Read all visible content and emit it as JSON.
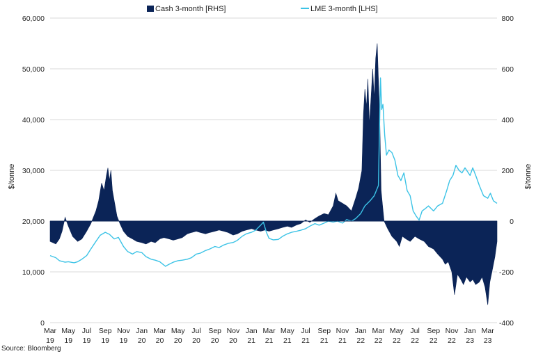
{
  "chart_data": {
    "type": "area+line",
    "title": "",
    "ylabel_left": "$/tonne",
    "ylabel_right": "$/tonne",
    "ylim_left": [
      0,
      60000
    ],
    "ylim_right": [
      -400,
      800
    ],
    "yticks_left": [
      "0",
      "10,000",
      "20,000",
      "30,000",
      "40,000",
      "50,000",
      "60,000"
    ],
    "yticks_left_values": [
      0,
      10000,
      20000,
      30000,
      40000,
      50000,
      60000
    ],
    "yticks_right": [
      "-400",
      "-200",
      "0",
      "200",
      "400",
      "600",
      "800"
    ],
    "yticks_right_values": [
      -400,
      -200,
      0,
      200,
      400,
      600,
      800
    ],
    "x_domain": [
      "2019-03",
      "2023-04"
    ],
    "xticks": [
      {
        "month": "Mar",
        "year": "19",
        "date": "2019-03"
      },
      {
        "month": "May",
        "year": "19",
        "date": "2019-05"
      },
      {
        "month": "Jul",
        "year": "19",
        "date": "2019-07"
      },
      {
        "month": "Sep",
        "year": "19",
        "date": "2019-09"
      },
      {
        "month": "Nov",
        "year": "19",
        "date": "2019-11"
      },
      {
        "month": "Jan",
        "year": "20",
        "date": "2020-01"
      },
      {
        "month": "Mar",
        "year": "20",
        "date": "2020-03"
      },
      {
        "month": "May",
        "year": "20",
        "date": "2020-05"
      },
      {
        "month": "Jul",
        "year": "20",
        "date": "2020-07"
      },
      {
        "month": "Sep",
        "year": "20",
        "date": "2020-09"
      },
      {
        "month": "Nov",
        "year": "20",
        "date": "2020-11"
      },
      {
        "month": "Jan",
        "year": "21",
        "date": "2021-01"
      },
      {
        "month": "Mar",
        "year": "21",
        "date": "2021-03"
      },
      {
        "month": "May",
        "year": "21",
        "date": "2021-05"
      },
      {
        "month": "Jul",
        "year": "21",
        "date": "2021-07"
      },
      {
        "month": "Sep",
        "year": "21",
        "date": "2021-09"
      },
      {
        "month": "Nov",
        "year": "21",
        "date": "2021-11"
      },
      {
        "month": "Jan",
        "year": "22",
        "date": "2022-01"
      },
      {
        "month": "Mar",
        "year": "22",
        "date": "2022-03"
      },
      {
        "month": "May",
        "year": "22",
        "date": "2022-05"
      },
      {
        "month": "Jul",
        "year": "22",
        "date": "2022-07"
      },
      {
        "month": "Sep",
        "year": "22",
        "date": "2022-09"
      },
      {
        "month": "Nov",
        "year": "22",
        "date": "2022-11"
      },
      {
        "month": "Jan",
        "year": "23",
        "date": "2023-01"
      },
      {
        "month": "Mar",
        "year": "23",
        "date": "2023-03"
      }
    ],
    "grid": true,
    "legend_position": "top-center",
    "series": [
      {
        "name": "Cash 3-month [RHS]",
        "type": "area",
        "axis": "right",
        "color": "#0b2457",
        "points": [
          [
            "2019-03-01",
            -80
          ],
          [
            "2019-03-20",
            -90
          ],
          [
            "2019-04-01",
            -70
          ],
          [
            "2019-04-10",
            -40
          ],
          [
            "2019-04-20",
            15
          ],
          [
            "2019-05-01",
            -20
          ],
          [
            "2019-05-15",
            -60
          ],
          [
            "2019-06-01",
            -80
          ],
          [
            "2019-06-15",
            -70
          ],
          [
            "2019-07-01",
            -40
          ],
          [
            "2019-07-15",
            -10
          ],
          [
            "2019-08-01",
            40
          ],
          [
            "2019-08-10",
            80
          ],
          [
            "2019-08-20",
            150
          ],
          [
            "2019-08-28",
            120
          ],
          [
            "2019-09-05",
            180
          ],
          [
            "2019-09-10",
            210
          ],
          [
            "2019-09-15",
            160
          ],
          [
            "2019-09-20",
            200
          ],
          [
            "2019-09-25",
            120
          ],
          [
            "2019-10-01",
            80
          ],
          [
            "2019-10-10",
            20
          ],
          [
            "2019-10-20",
            -10
          ],
          [
            "2019-11-01",
            -40
          ],
          [
            "2019-11-15",
            -60
          ],
          [
            "2019-12-01",
            -70
          ],
          [
            "2019-12-15",
            -80
          ],
          [
            "2020-01-01",
            -85
          ],
          [
            "2020-01-15",
            -90
          ],
          [
            "2020-02-01",
            -80
          ],
          [
            "2020-02-15",
            -85
          ],
          [
            "2020-03-01",
            -70
          ],
          [
            "2020-03-15",
            -65
          ],
          [
            "2020-04-01",
            -70
          ],
          [
            "2020-04-15",
            -75
          ],
          [
            "2020-05-01",
            -70
          ],
          [
            "2020-05-15",
            -65
          ],
          [
            "2020-06-01",
            -50
          ],
          [
            "2020-06-15",
            -45
          ],
          [
            "2020-07-01",
            -40
          ],
          [
            "2020-07-15",
            -45
          ],
          [
            "2020-08-01",
            -50
          ],
          [
            "2020-08-15",
            -45
          ],
          [
            "2020-09-01",
            -40
          ],
          [
            "2020-09-15",
            -35
          ],
          [
            "2020-10-01",
            -40
          ],
          [
            "2020-10-15",
            -45
          ],
          [
            "2020-11-01",
            -55
          ],
          [
            "2020-11-15",
            -50
          ],
          [
            "2020-12-01",
            -40
          ],
          [
            "2020-12-15",
            -35
          ],
          [
            "2021-01-01",
            -30
          ],
          [
            "2021-01-15",
            -35
          ],
          [
            "2021-02-01",
            -40
          ],
          [
            "2021-02-15",
            -35
          ],
          [
            "2021-03-01",
            -40
          ],
          [
            "2021-03-15",
            -35
          ],
          [
            "2021-04-01",
            -30
          ],
          [
            "2021-04-15",
            -25
          ],
          [
            "2021-05-01",
            -20
          ],
          [
            "2021-05-15",
            -25
          ],
          [
            "2021-06-01",
            -15
          ],
          [
            "2021-06-15",
            -10
          ],
          [
            "2021-07-01",
            5
          ],
          [
            "2021-07-15",
            -5
          ],
          [
            "2021-08-01",
            10
          ],
          [
            "2021-08-15",
            20
          ],
          [
            "2021-09-01",
            30
          ],
          [
            "2021-09-15",
            25
          ],
          [
            "2021-10-01",
            60
          ],
          [
            "2021-10-10",
            110
          ],
          [
            "2021-10-18",
            80
          ],
          [
            "2021-11-01",
            70
          ],
          [
            "2021-11-15",
            60
          ],
          [
            "2021-12-01",
            40
          ],
          [
            "2021-12-15",
            90
          ],
          [
            "2021-12-25",
            130
          ],
          [
            "2022-01-05",
            200
          ],
          [
            "2022-01-10",
            420
          ],
          [
            "2022-01-15",
            520
          ],
          [
            "2022-01-20",
            450
          ],
          [
            "2022-01-25",
            560
          ],
          [
            "2022-01-30",
            380
          ],
          [
            "2022-02-05",
            500
          ],
          [
            "2022-02-10",
            600
          ],
          [
            "2022-02-15",
            480
          ],
          [
            "2022-02-20",
            640
          ],
          [
            "2022-02-25",
            700
          ],
          [
            "2022-03-01",
            560
          ],
          [
            "2022-03-05",
            440
          ],
          [
            "2022-03-10",
            120
          ],
          [
            "2022-03-15",
            60
          ],
          [
            "2022-03-20",
            0
          ],
          [
            "2022-04-01",
            -30
          ],
          [
            "2022-04-15",
            -60
          ],
          [
            "2022-05-01",
            -80
          ],
          [
            "2022-05-10",
            -100
          ],
          [
            "2022-05-20",
            -60
          ],
          [
            "2022-06-01",
            -70
          ],
          [
            "2022-06-15",
            -80
          ],
          [
            "2022-07-01",
            -60
          ],
          [
            "2022-07-15",
            -70
          ],
          [
            "2022-08-01",
            -80
          ],
          [
            "2022-08-15",
            -100
          ],
          [
            "2022-09-01",
            -110
          ],
          [
            "2022-09-15",
            -130
          ],
          [
            "2022-10-01",
            -150
          ],
          [
            "2022-10-10",
            -170
          ],
          [
            "2022-10-20",
            -160
          ],
          [
            "2022-11-01",
            -200
          ],
          [
            "2022-11-10",
            -290
          ],
          [
            "2022-11-20",
            -210
          ],
          [
            "2022-12-01",
            -230
          ],
          [
            "2022-12-10",
            -250
          ],
          [
            "2022-12-20",
            -220
          ],
          [
            "2023-01-01",
            -240
          ],
          [
            "2023-01-10",
            -230
          ],
          [
            "2023-01-20",
            -250
          ],
          [
            "2023-02-01",
            -240
          ],
          [
            "2023-02-10",
            -220
          ],
          [
            "2023-02-20",
            -260
          ],
          [
            "2023-03-01",
            -330
          ],
          [
            "2023-03-08",
            -240
          ],
          [
            "2023-03-15",
            -200
          ],
          [
            "2023-03-25",
            -140
          ],
          [
            "2023-04-01",
            -80
          ]
        ]
      },
      {
        "name": "LME 3-month [LHS]",
        "type": "line",
        "axis": "left",
        "color": "#3cc3e6",
        "points": [
          [
            "2019-03-01",
            13200
          ],
          [
            "2019-03-20",
            12800
          ],
          [
            "2019-04-01",
            12200
          ],
          [
            "2019-04-20",
            11900
          ],
          [
            "2019-05-01",
            12000
          ],
          [
            "2019-05-20",
            11800
          ],
          [
            "2019-06-01",
            12000
          ],
          [
            "2019-06-15",
            12500
          ],
          [
            "2019-07-01",
            13200
          ],
          [
            "2019-07-15",
            14500
          ],
          [
            "2019-08-01",
            16000
          ],
          [
            "2019-08-15",
            17200
          ],
          [
            "2019-09-01",
            17800
          ],
          [
            "2019-09-15",
            17400
          ],
          [
            "2019-10-01",
            16500
          ],
          [
            "2019-10-15",
            16800
          ],
          [
            "2019-11-01",
            15000
          ],
          [
            "2019-11-15",
            14000
          ],
          [
            "2019-12-01",
            13500
          ],
          [
            "2019-12-15",
            14000
          ],
          [
            "2020-01-01",
            13800
          ],
          [
            "2020-01-15",
            13000
          ],
          [
            "2020-02-01",
            12500
          ],
          [
            "2020-02-15",
            12300
          ],
          [
            "2020-03-01",
            12000
          ],
          [
            "2020-03-20",
            11100
          ],
          [
            "2020-04-01",
            11500
          ],
          [
            "2020-04-15",
            11900
          ],
          [
            "2020-05-01",
            12200
          ],
          [
            "2020-05-15",
            12300
          ],
          [
            "2020-06-01",
            12500
          ],
          [
            "2020-06-15",
            12800
          ],
          [
            "2020-07-01",
            13500
          ],
          [
            "2020-07-15",
            13700
          ],
          [
            "2020-08-01",
            14200
          ],
          [
            "2020-08-15",
            14500
          ],
          [
            "2020-09-01",
            15000
          ],
          [
            "2020-09-15",
            14800
          ],
          [
            "2020-10-01",
            15300
          ],
          [
            "2020-10-15",
            15600
          ],
          [
            "2020-11-01",
            15800
          ],
          [
            "2020-11-15",
            16200
          ],
          [
            "2020-12-01",
            17000
          ],
          [
            "2020-12-15",
            17500
          ],
          [
            "2021-01-01",
            17800
          ],
          [
            "2021-01-15",
            18200
          ],
          [
            "2021-02-01",
            19200
          ],
          [
            "2021-02-10",
            19800
          ],
          [
            "2021-02-20",
            17800
          ],
          [
            "2021-03-01",
            16600
          ],
          [
            "2021-03-15",
            16300
          ],
          [
            "2021-04-01",
            16400
          ],
          [
            "2021-04-15",
            17000
          ],
          [
            "2021-05-01",
            17500
          ],
          [
            "2021-05-15",
            17800
          ],
          [
            "2021-06-01",
            18000
          ],
          [
            "2021-06-15",
            18200
          ],
          [
            "2021-07-01",
            18500
          ],
          [
            "2021-07-15",
            19000
          ],
          [
            "2021-08-01",
            19500
          ],
          [
            "2021-08-15",
            19200
          ],
          [
            "2021-09-01",
            19600
          ],
          [
            "2021-09-15",
            20000
          ],
          [
            "2021-10-01",
            19800
          ],
          [
            "2021-10-15",
            20000
          ],
          [
            "2021-11-01",
            19600
          ],
          [
            "2021-11-15",
            20300
          ],
          [
            "2021-12-01",
            20000
          ],
          [
            "2021-12-15",
            20500
          ],
          [
            "2022-01-01",
            21500
          ],
          [
            "2022-01-15",
            23000
          ],
          [
            "2022-02-01",
            24000
          ],
          [
            "2022-02-15",
            25000
          ],
          [
            "2022-03-01",
            27000
          ],
          [
            "2022-03-08",
            48200
          ],
          [
            "2022-03-12",
            42000
          ],
          [
            "2022-03-16",
            43000
          ],
          [
            "2022-03-22",
            37000
          ],
          [
            "2022-03-28",
            33000
          ],
          [
            "2022-04-05",
            34000
          ],
          [
            "2022-04-15",
            33500
          ],
          [
            "2022-04-25",
            32000
          ],
          [
            "2022-05-05",
            29000
          ],
          [
            "2022-05-15",
            28000
          ],
          [
            "2022-05-25",
            29500
          ],
          [
            "2022-06-05",
            26000
          ],
          [
            "2022-06-15",
            25000
          ],
          [
            "2022-06-25",
            22000
          ],
          [
            "2022-07-05",
            21000
          ],
          [
            "2022-07-15",
            20200
          ],
          [
            "2022-07-25",
            22000
          ],
          [
            "2022-08-05",
            22500
          ],
          [
            "2022-08-15",
            23000
          ],
          [
            "2022-09-01",
            22000
          ],
          [
            "2022-09-15",
            23000
          ],
          [
            "2022-10-01",
            23500
          ],
          [
            "2022-10-15",
            26000
          ],
          [
            "2022-10-25",
            28000
          ],
          [
            "2022-11-05",
            29000
          ],
          [
            "2022-11-15",
            31000
          ],
          [
            "2022-11-25",
            30000
          ],
          [
            "2022-12-05",
            29500
          ],
          [
            "2022-12-15",
            30500
          ],
          [
            "2023-01-01",
            29000
          ],
          [
            "2023-01-10",
            30500
          ],
          [
            "2023-01-20",
            29000
          ],
          [
            "2023-02-01",
            27000
          ],
          [
            "2023-02-15",
            25000
          ],
          [
            "2023-03-01",
            24500
          ],
          [
            "2023-03-10",
            25500
          ],
          [
            "2023-03-20",
            24000
          ],
          [
            "2023-04-01",
            23500
          ]
        ]
      }
    ],
    "source": "Source: Bloomberg"
  }
}
